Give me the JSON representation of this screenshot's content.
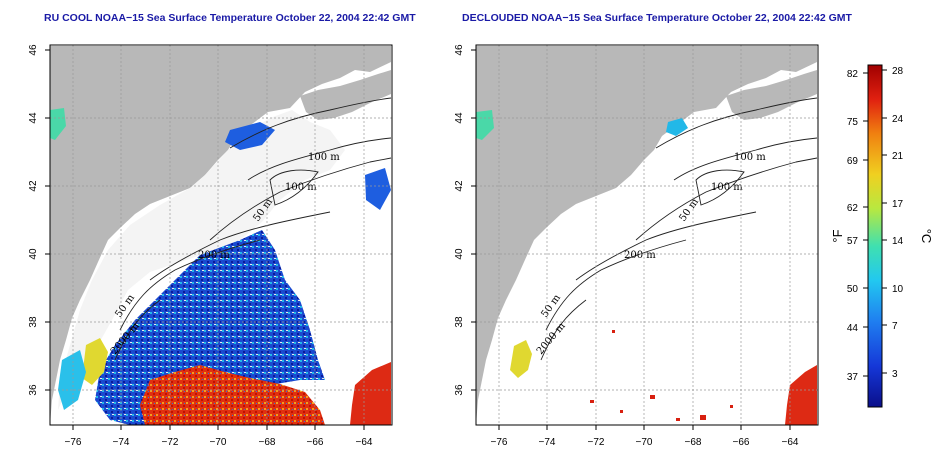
{
  "maps": [
    {
      "title": "RU COOL NOAA−15 Sea Surface Temperature October 22, 2004 22:42 GMT",
      "x_ticks": [
        "−76",
        "−74",
        "−72",
        "−70",
        "−68",
        "−66",
        "−64"
      ],
      "y_ticks": [
        "46",
        "44",
        "42",
        "40",
        "38",
        "36"
      ],
      "contour_labels": [
        "100 m",
        "100 m",
        "50 m",
        "200 m",
        "50 m",
        "2000 m"
      ]
    },
    {
      "title": "DECLOUDED NOAA−15 Sea Surface Temperature October 22, 2004 22:42 GMT",
      "x_ticks": [
        "−76",
        "−74",
        "−72",
        "−70",
        "−68",
        "−66",
        "−64"
      ],
      "y_ticks": [
        "46",
        "44",
        "42",
        "40",
        "38",
        "36"
      ],
      "contour_labels": [
        "100 m",
        "100 m",
        "50 m",
        "200 m",
        "50 m",
        "2000 m"
      ]
    }
  ],
  "colorbar": {
    "fahrenheit_ticks": [
      "82",
      "75",
      "69",
      "62",
      "57",
      "50",
      "44",
      "37"
    ],
    "celsius_ticks": [
      "28",
      "24",
      "21",
      "17",
      "14",
      "10",
      "7",
      "3"
    ],
    "f_unit": "°F",
    "c_unit": "°C",
    "colors": [
      "#0a0f8a",
      "#1538d8",
      "#1f7ef0",
      "#22c8f0",
      "#3fe0b0",
      "#b8e840",
      "#f0d020",
      "#f08010",
      "#e02010",
      "#a00000"
    ]
  }
}
